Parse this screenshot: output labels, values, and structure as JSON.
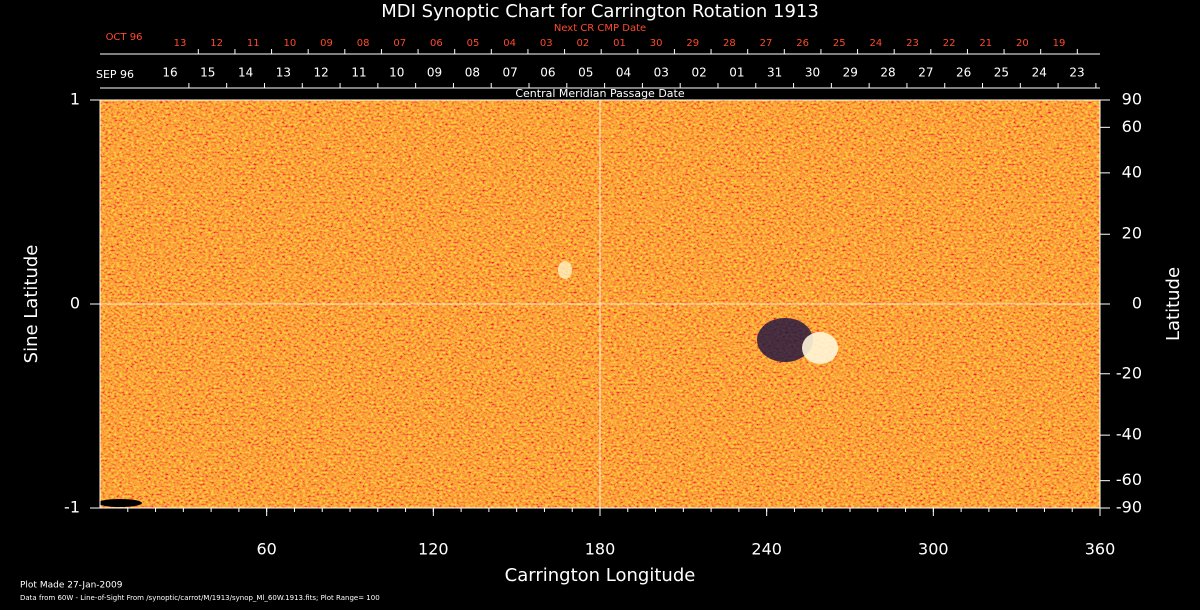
{
  "chart_data": {
    "type": "synoptic-map",
    "title": "MDI Synoptic Chart for Carrington Rotation 1913",
    "xlabel": "Carrington Longitude",
    "ylabel": "Sine Latitude",
    "y2label": "Latitude",
    "xlim": [
      0,
      360
    ],
    "xticks": [
      60,
      120,
      180,
      240,
      300,
      360
    ],
    "ylim": [
      -1,
      1
    ],
    "yticks": [
      -1,
      0,
      1
    ],
    "y2lim": [
      -90,
      90
    ],
    "y2scale": "sine",
    "y2ticks": [
      90,
      60,
      40,
      20,
      0,
      -20,
      -40,
      -60,
      -90
    ],
    "next_cr_axis": {
      "title": "Next CR CMP Date",
      "month": "OCT 96",
      "color": "#ff4a2a",
      "categories": [
        "13",
        "12",
        "11",
        "10",
        "09",
        "08",
        "07",
        "06",
        "05",
        "04",
        "03",
        "02",
        "01",
        "30",
        "29",
        "28",
        "27",
        "26",
        "25",
        "24",
        "23",
        "22",
        "21",
        "20",
        "19"
      ]
    },
    "cmp_axis": {
      "title": "Central Meridian Passage Date",
      "month": "SEP 96",
      "color": "#ffffff",
      "categories": [
        "16",
        "15",
        "14",
        "13",
        "12",
        "11",
        "10",
        "09",
        "08",
        "07",
        "06",
        "05",
        "04",
        "03",
        "02",
        "01",
        "31",
        "30",
        "29",
        "28",
        "27",
        "26",
        "25",
        "24",
        "23"
      ]
    },
    "footer": [
      "Plot Made 27-Jan-2009",
      "Data from 60W - Line-of-Sight From /synoptic/carrot/M/1913/synop_Ml_60W.1913.fits; Plot Range=  100"
    ]
  }
}
